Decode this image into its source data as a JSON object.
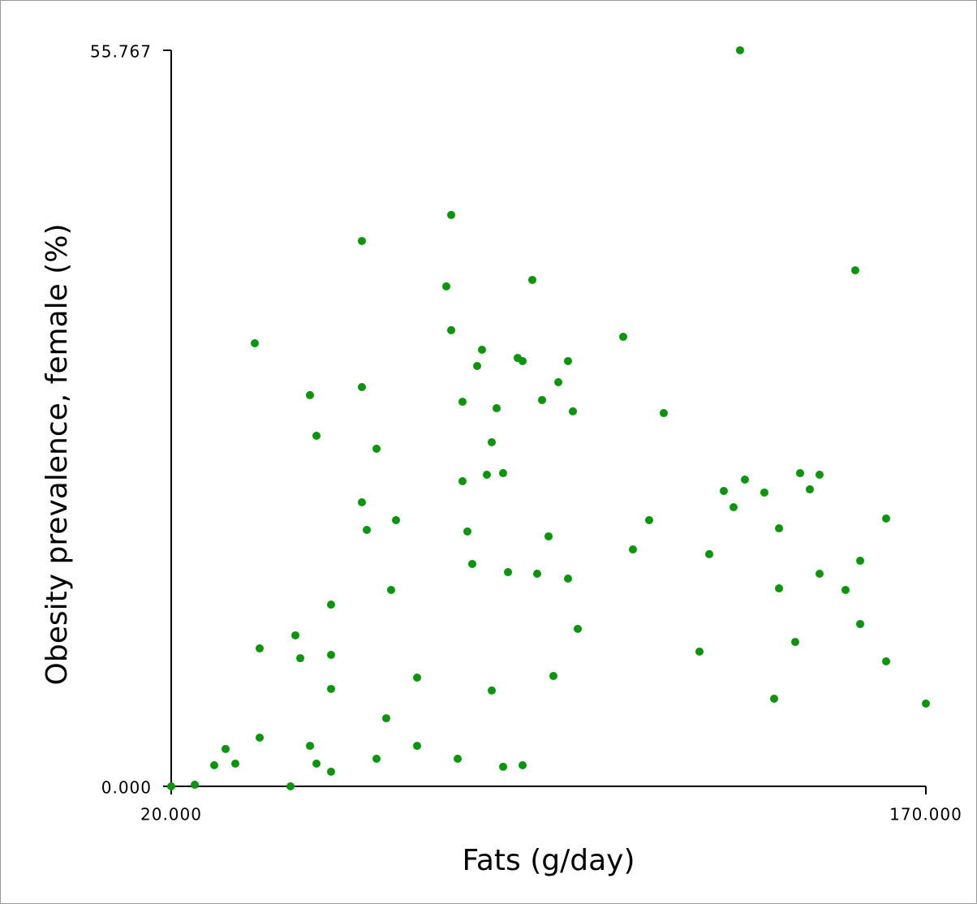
{
  "chart_data": {
    "type": "scatter",
    "x_label": "Fats (g/day)",
    "y_label": "Obesity prevalence, female (%)",
    "color": "#0a960a",
    "xlim": [
      20,
      170
    ],
    "ylim": [
      0,
      55.767
    ],
    "xticks": [
      {
        "value": 20,
        "label": "20.000"
      },
      {
        "value": 170,
        "label": "170.000"
      }
    ],
    "yticks": [
      {
        "value": 0,
        "label": "0.000"
      },
      55.767
    ],
    "x": [
      20,
      24.68,
      28.55,
      30.81,
      32.74,
      36.61,
      37.58,
      37.58,
      43.71,
      44.68,
      45.65,
      47.58,
      47.58,
      48.87,
      48.87,
      51.77,
      51.77,
      51.77,
      51.77,
      57.9,
      57.9,
      57.9,
      58.87,
      60.81,
      60.81,
      62.74,
      63.71,
      64.68,
      68.87,
      68.87,
      74.68,
      75.65,
      75.65,
      76.94,
      77.9,
      77.9,
      78.87,
      79.84,
      80.81,
      81.77,
      82.74,
      83.71,
      83.71,
      84.68,
      85.97,
      85.97,
      86.94,
      88.87,
      89.84,
      89.84,
      91.77,
      92.74,
      93.71,
      95.0,
      95.97,
      96.94,
      98.87,
      98.87,
      99.84,
      100.81,
      109.84,
      111.77,
      115.0,
      117.9,
      125.0,
      126.94,
      129.84,
      131.77,
      133.06,
      134.03,
      137.9,
      139.84,
      140.81,
      140.81,
      144.03,
      145.0,
      146.94,
      148.87,
      148.87,
      154.03,
      155.97,
      156.94,
      156.94,
      162.1,
      162.1,
      170.0
    ],
    "values": [
      0,
      0.12,
      1.6,
      2.83,
      1.72,
      33.57,
      10.45,
      3.69,
      0,
      11.44,
      9.71,
      29.64,
      3.07,
      26.56,
      1.72,
      13.77,
      9.96,
      7.38,
      1.11,
      41.32,
      30.25,
      21.52,
      19.43,
      25.58,
      2.09,
      5.16,
      14.88,
      20.17,
      8.24,
      3.07,
      37.88,
      43.29,
      34.56,
      2.09,
      29.14,
      23.12,
      19.31,
      16.85,
      31.85,
      33.08,
      23.61,
      26.07,
      7.26,
      28.65,
      23.73,
      1.48,
      16.23,
      32.46,
      32.22,
      1.6,
      38.37,
      16.11,
      29.27,
      18.94,
      8.36,
      30.62,
      32.22,
      15.74,
      28.41,
      11.93,
      34.06,
      17.95,
      20.17,
      28.28,
      10.21,
      17.59,
      22.38,
      21.15,
      55.77,
      23.24,
      22.26,
      6.64,
      19.55,
      15.0,
      10.94,
      23.73,
      22.5,
      23.61,
      16.11,
      14.88,
      39.1,
      17.09,
      12.3,
      20.29,
      9.47,
      6.27
    ]
  }
}
